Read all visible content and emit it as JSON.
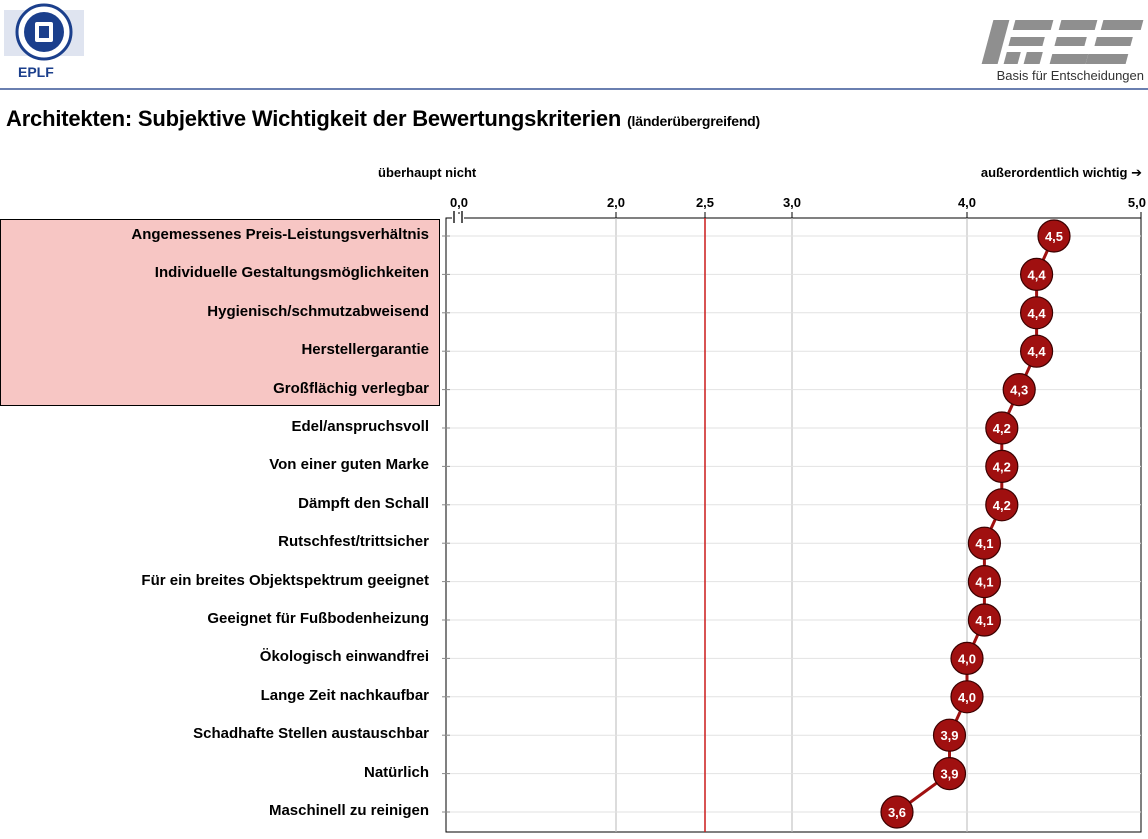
{
  "header": {
    "left_logo_text": "EPLF",
    "left_logo_icon": "eplf-globe-logo-icon",
    "right_logo_icon": "ires-logo-icon",
    "tagline": "Basis für Entscheidungen"
  },
  "title": {
    "main": "Architekten: Subjektive Wichtigkeit der Bewertungskriterien",
    "sub": "(länderübergreifend)"
  },
  "axis_notes": {
    "left": "überhaupt nicht",
    "right": "außerordentlich wichtig ➔"
  },
  "colors": {
    "marker": "#a01010",
    "reference_line": "#cc1a1a",
    "highlight": "#f7c6c4",
    "grid": "#b8b8b8"
  },
  "chart_data": {
    "type": "line",
    "orientation": "horizontal-dot-profile",
    "title": "Architekten: Subjektive Wichtigkeit der Bewertungskriterien",
    "subtitle": "(länderübergreifend)",
    "x_tick_labels": [
      "0,0",
      "2,0",
      "2,5",
      "3,0",
      "4,0",
      "5,0"
    ],
    "x_ticks": [
      0,
      2.0,
      2.5,
      3.0,
      4.0,
      5.0
    ],
    "x_axis_break": true,
    "reference_line": 2.5,
    "grid": true,
    "categories": [
      "Angemessenes Preis-Leistungsverhältnis",
      "Individuelle Gestaltungsmöglichkeiten",
      "Hygienisch/schmutzabweisend",
      "Herstellergarantie",
      "Großflächig verlegbar",
      "Edel/anspruchsvoll",
      "Von einer guten Marke",
      "Dämpft den Schall",
      "Rutschfest/trittsicher",
      "Für ein breites Objektspektrum geeignet",
      "Geeignet für Fußbodenheizung",
      "Ökologisch einwandfrei",
      "Lange Zeit nachkaufbar",
      "Schadhafte Stellen austauschbar",
      "Natürlich",
      "Maschinell zu reinigen"
    ],
    "values": [
      4.5,
      4.4,
      4.4,
      4.4,
      4.3,
      4.2,
      4.2,
      4.2,
      4.1,
      4.1,
      4.1,
      4.0,
      4.0,
      3.9,
      3.9,
      3.6
    ],
    "value_labels": [
      "4,5",
      "4,4",
      "4,4",
      "4,4",
      "4,3",
      "4,2",
      "4,2",
      "4,2",
      "4,1",
      "4,1",
      "4,1",
      "4,0",
      "4,0",
      "3,9",
      "3,9",
      "3,6"
    ],
    "highlighted_count": 5
  }
}
